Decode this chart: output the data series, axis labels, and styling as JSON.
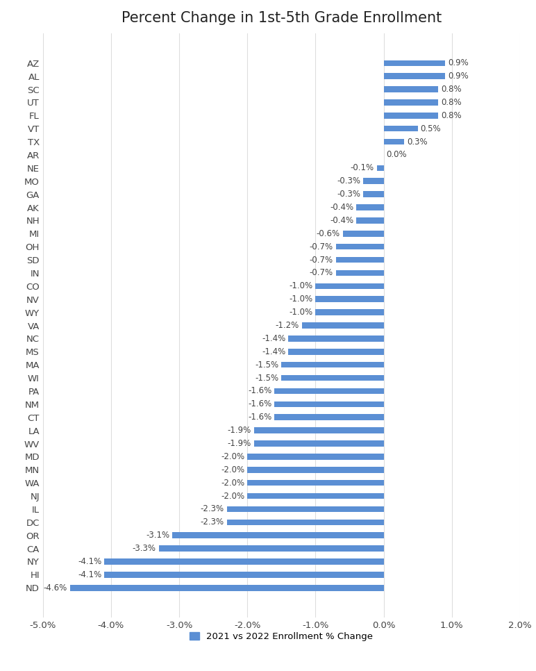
{
  "title": "Percent Change in 1st-5th Grade Enrollment",
  "legend_label": "2021 vs 2022 Enrollment % Change",
  "bar_color": "#5B8FD4",
  "background_color": "#FFFFFF",
  "grid_color": "#DDDDDD",
  "label_color": "#444444",
  "categories": [
    "ND",
    "HI",
    "NY",
    "CA",
    "OR",
    "DC",
    "IL",
    "NJ",
    "WA",
    "MN",
    "MD",
    "WV",
    "LA",
    "CT",
    "NM",
    "PA",
    "WI",
    "MA",
    "MS",
    "NC",
    "VA",
    "WY",
    "NV",
    "CO",
    "IN",
    "SD",
    "OH",
    "MI",
    "NH",
    "AK",
    "GA",
    "MO",
    "NE",
    "AR",
    "TX",
    "VT",
    "FL",
    "UT",
    "SC",
    "AL",
    "AZ"
  ],
  "values": [
    -4.6,
    -4.1,
    -4.1,
    -3.3,
    -3.1,
    -2.3,
    -2.3,
    -2.0,
    -2.0,
    -2.0,
    -2.0,
    -1.9,
    -1.9,
    -1.6,
    -1.6,
    -1.6,
    -1.5,
    -1.5,
    -1.4,
    -1.4,
    -1.2,
    -1.0,
    -1.0,
    -1.0,
    -0.7,
    -0.7,
    -0.7,
    -0.6,
    -0.4,
    -0.4,
    -0.3,
    -0.3,
    -0.1,
    0.0,
    0.3,
    0.5,
    0.8,
    0.8,
    0.8,
    0.9,
    0.9
  ],
  "xlim": [
    -5.0,
    2.0
  ],
  "xticks": [
    -5.0,
    -4.0,
    -3.0,
    -2.0,
    -1.0,
    0.0,
    1.0,
    2.0
  ],
  "xtick_labels": [
    "-5.0%",
    "-4.0%",
    "-3.0%",
    "-2.0%",
    "-1.0%",
    "0.0%",
    "1.0%",
    "2.0%"
  ],
  "figsize": [
    7.72,
    9.66
  ],
  "dpi": 100,
  "bar_height": 0.45,
  "label_fontsize": 8.5,
  "tick_fontsize": 9.5,
  "title_fontsize": 15
}
